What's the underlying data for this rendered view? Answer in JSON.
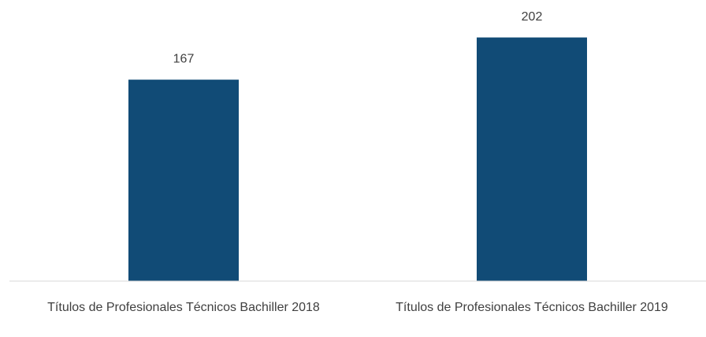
{
  "chart_data": {
    "type": "bar",
    "categories": [
      "Títulos de Profesionales Técnicos Bachiller 2018",
      "Títulos de Profesionales Técnicos Bachiller 2019"
    ],
    "values": [
      167,
      202
    ],
    "color": "#114b76",
    "ylim": [
      0,
      220
    ]
  }
}
